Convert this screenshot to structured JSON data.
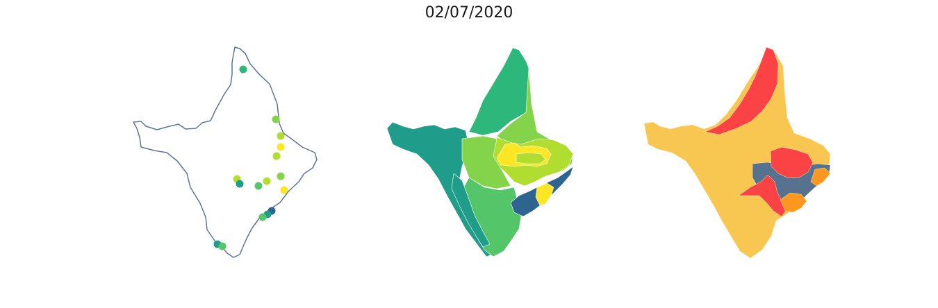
{
  "title": "02/07/2020",
  "colors": {
    "outline": "#5a7694",
    "viridis": [
      "#2e6490",
      "#1f9d8a",
      "#2db77b",
      "#54c568",
      "#84d44b",
      "#b0dd2f",
      "#fde725"
    ],
    "categorical": {
      "red": "#fb4345",
      "gold": "#f8c752",
      "orange": "#fc981f",
      "slate": "#56728f"
    }
  },
  "panels": [
    {
      "name": "points-map",
      "type": "points on outline"
    },
    {
      "name": "choropleth-viridis",
      "type": "choropleth"
    },
    {
      "name": "choropleth-categorical",
      "type": "choropleth"
    }
  ]
}
